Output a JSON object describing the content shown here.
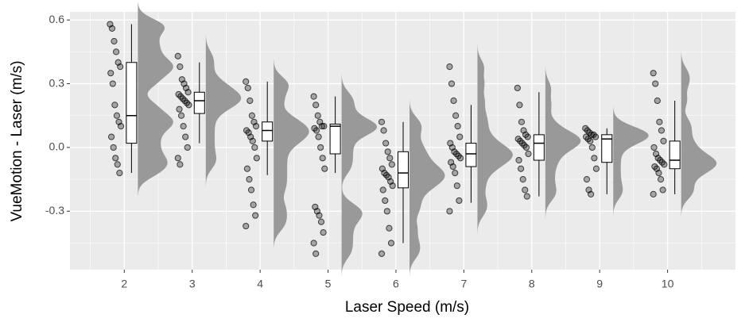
{
  "chart_data": {
    "type": "raincloud",
    "x_label": "Laser Speed (m/s)",
    "y_label": "VueMotion - Laser (m/s)",
    "xlim": [
      1.2,
      11.0
    ],
    "ylim": [
      -0.575,
      0.638
    ],
    "xticks": [
      2,
      3,
      4,
      5,
      6,
      7,
      8,
      9,
      10
    ],
    "yticks": [
      0.6,
      0.3,
      {
        "value": 0,
        "label": "0.0"
      },
      -0.3
    ],
    "grid": true,
    "minor_grid": true,
    "point_color": "#000000",
    "box_color": "#000000",
    "density_color": "#999999",
    "groups": [
      {
        "x": 2,
        "box": {
          "min": -0.12,
          "q1": 0.02,
          "median": 0.15,
          "q3": 0.4,
          "max": 0.58
        },
        "points": [
          0.58,
          0.56,
          0.5,
          0.45,
          0.4,
          0.38,
          0.35,
          0.3,
          0.2,
          0.15,
          0.12,
          0.1,
          0.05,
          0.0,
          -0.05,
          -0.08,
          -0.12
        ]
      },
      {
        "x": 3,
        "box": {
          "min": 0.02,
          "q1": 0.16,
          "median": 0.22,
          "q3": 0.26,
          "max": 0.4
        },
        "points": [
          0.43,
          0.38,
          0.32,
          0.3,
          0.28,
          0.26,
          0.25,
          0.24,
          0.23,
          0.22,
          0.21,
          0.2,
          0.18,
          0.15,
          0.1,
          0.05,
          0.0,
          -0.05,
          -0.08
        ]
      },
      {
        "x": 4,
        "box": {
          "min": -0.13,
          "q1": 0.03,
          "median": 0.08,
          "q3": 0.12,
          "max": 0.31
        },
        "points": [
          0.31,
          0.28,
          0.22,
          0.15,
          0.12,
          0.1,
          0.08,
          0.07,
          0.05,
          0.03,
          0.0,
          -0.05,
          -0.1,
          -0.15,
          -0.2,
          -0.27,
          -0.32,
          -0.37
        ]
      },
      {
        "x": 5,
        "box": {
          "min": -0.12,
          "q1": -0.03,
          "median": 0.1,
          "q3": 0.11,
          "max": 0.24
        },
        "points": [
          0.24,
          0.2,
          0.15,
          0.12,
          0.1,
          0.1,
          0.09,
          0.08,
          0.05,
          0.0,
          -0.05,
          -0.1,
          -0.28,
          -0.3,
          -0.32,
          -0.35,
          -0.4,
          -0.45,
          -0.5
        ]
      },
      {
        "x": 6,
        "box": {
          "min": -0.45,
          "q1": -0.19,
          "median": -0.12,
          "q3": -0.02,
          "max": 0.12
        },
        "points": [
          0.12,
          0.08,
          0.02,
          -0.02,
          -0.05,
          -0.08,
          -0.1,
          -0.12,
          -0.13,
          -0.14,
          -0.16,
          -0.18,
          -0.2,
          -0.25,
          -0.3,
          -0.38,
          -0.45,
          -0.5
        ]
      },
      {
        "x": 7,
        "box": {
          "min": -0.26,
          "q1": -0.09,
          "median": -0.03,
          "q3": 0.02,
          "max": 0.2
        },
        "points": [
          0.38,
          0.3,
          0.22,
          0.15,
          0.1,
          0.05,
          0.02,
          0.0,
          -0.02,
          -0.03,
          -0.04,
          -0.05,
          -0.07,
          -0.09,
          -0.12,
          -0.18,
          -0.25,
          -0.3
        ]
      },
      {
        "x": 8,
        "box": {
          "min": -0.23,
          "q1": -0.06,
          "median": 0.02,
          "q3": 0.06,
          "max": 0.26
        },
        "points": [
          0.28,
          0.2,
          0.12,
          0.08,
          0.06,
          0.05,
          0.04,
          0.03,
          0.02,
          0.01,
          0.0,
          -0.03,
          -0.06,
          -0.1,
          -0.15,
          -0.2,
          -0.23
        ]
      },
      {
        "x": 9,
        "box": {
          "min": -0.22,
          "q1": -0.07,
          "median": 0.04,
          "q3": 0.06,
          "max": 0.09
        },
        "points": [
          0.09,
          0.08,
          0.07,
          0.06,
          0.06,
          0.05,
          0.05,
          0.04,
          0.03,
          0.0,
          -0.05,
          -0.1,
          -0.15,
          -0.2,
          -0.22
        ]
      },
      {
        "x": 10,
        "box": {
          "min": -0.22,
          "q1": -0.1,
          "median": -0.06,
          "q3": 0.03,
          "max": 0.22
        },
        "points": [
          0.35,
          0.3,
          0.22,
          0.12,
          0.08,
          0.03,
          0.0,
          -0.03,
          -0.05,
          -0.06,
          -0.07,
          -0.08,
          -0.09,
          -0.1,
          -0.12,
          -0.15,
          -0.2,
          -0.22
        ]
      }
    ]
  }
}
